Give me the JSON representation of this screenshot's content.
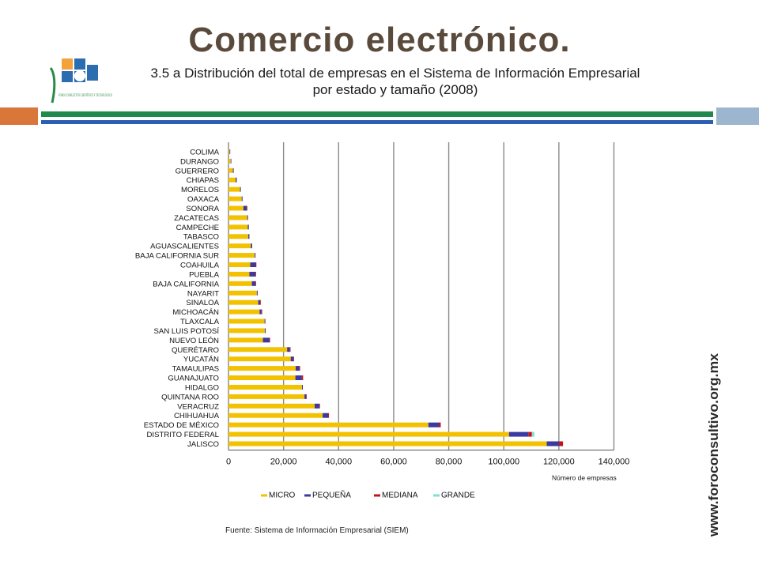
{
  "slide": {
    "title": "Comercio electrónico."
  },
  "logo": {
    "text": "FORO CONSULTIVO CIENTÍFICO Y TECNOLÓGICO"
  },
  "side_url": "www.foroconsultivo.org.mx",
  "source": "Fuente: Sistema de Información Empresarial (SIEM)",
  "colors": {
    "micro": "#f2c200",
    "pequena": "#3a3aa0",
    "mediana": "#c0141c",
    "grande": "#7fe0d0",
    "grid": "#8a8a8a",
    "band_orange": "#d9773a",
    "band_blue": "#9cb6cf",
    "stripe_green": "#1f8a4c",
    "stripe_blue": "#2b5fb4"
  },
  "chart_data": {
    "type": "bar",
    "orientation": "horizontal",
    "stacked": true,
    "title": "3.5 a Distribución del total de empresas en el Sistema de Información Empresarial",
    "subtitle": "por estado y tamaño (2008)",
    "xlabel": "Número de empresas",
    "xlim": [
      0,
      140000
    ],
    "xticks": [
      "0",
      "20,000",
      "40,000",
      "60,000",
      "80,000",
      "100,000",
      "120,000",
      "140,000"
    ],
    "grid": "vertical",
    "legend_position": "bottom",
    "categories": [
      "COLIMA",
      "DURANGO",
      "GUERRERO",
      "CHIAPAS",
      "MORELOS",
      "OAXACA",
      "SONORA",
      "ZACATECAS",
      "CAMPECHE",
      "TABASCO",
      "AGUASCALIENTES",
      "BAJA CALIFORNIA SUR",
      "COAHUILA",
      "PUEBLA",
      "BAJA CALIFORNIA",
      "NAYARIT",
      "SINALOA",
      "MICHOACÁN",
      "TLAXCALA",
      "SAN LUIS POTOSÍ",
      "NUEVO LEÓN",
      "QUERÉTARO",
      "YUCATÁN",
      "TAMAULIPAS",
      "GUANAJUATO",
      "HIDALGO",
      "QUINTANA ROO",
      "VERACRUZ",
      "CHIHUAHUA",
      "ESTADO DE MÉXICO",
      "DISTRITO FEDERAL",
      "JALISCO"
    ],
    "series": [
      {
        "name": "MICRO",
        "values": [
          400,
          800,
          1600,
          2600,
          4200,
          4800,
          5400,
          6800,
          7000,
          7200,
          8100,
          9500,
          7900,
          7600,
          8500,
          10300,
          10800,
          11300,
          13100,
          13200,
          12500,
          21300,
          22600,
          24400,
          24300,
          26700,
          27600,
          31300,
          34200,
          72600,
          101900,
          115600
        ]
      },
      {
        "name": "PEQUEÑA",
        "values": [
          100,
          200,
          300,
          400,
          300,
          300,
          1200,
          300,
          400,
          400,
          500,
          300,
          2000,
          2200,
          1300,
          300,
          700,
          700,
          300,
          300,
          2300,
          1000,
          1000,
          1300,
          2300,
          300,
          600,
          1700,
          2000,
          3800,
          7000,
          4500
        ]
      },
      {
        "name": "MEDIANA",
        "values": [
          0,
          0,
          0,
          0,
          0,
          0,
          100,
          0,
          0,
          0,
          0,
          0,
          200,
          200,
          200,
          0,
          100,
          100,
          0,
          0,
          300,
          200,
          100,
          300,
          500,
          0,
          100,
          200,
          300,
          700,
          1300,
          1400
        ]
      },
      {
        "name": "GRANDE",
        "values": [
          0,
          0,
          0,
          0,
          0,
          0,
          0,
          0,
          0,
          0,
          0,
          0,
          0,
          0,
          0,
          0,
          0,
          0,
          0,
          0,
          0,
          0,
          0,
          0,
          0,
          0,
          0,
          0,
          0,
          0,
          900,
          0
        ]
      }
    ]
  }
}
